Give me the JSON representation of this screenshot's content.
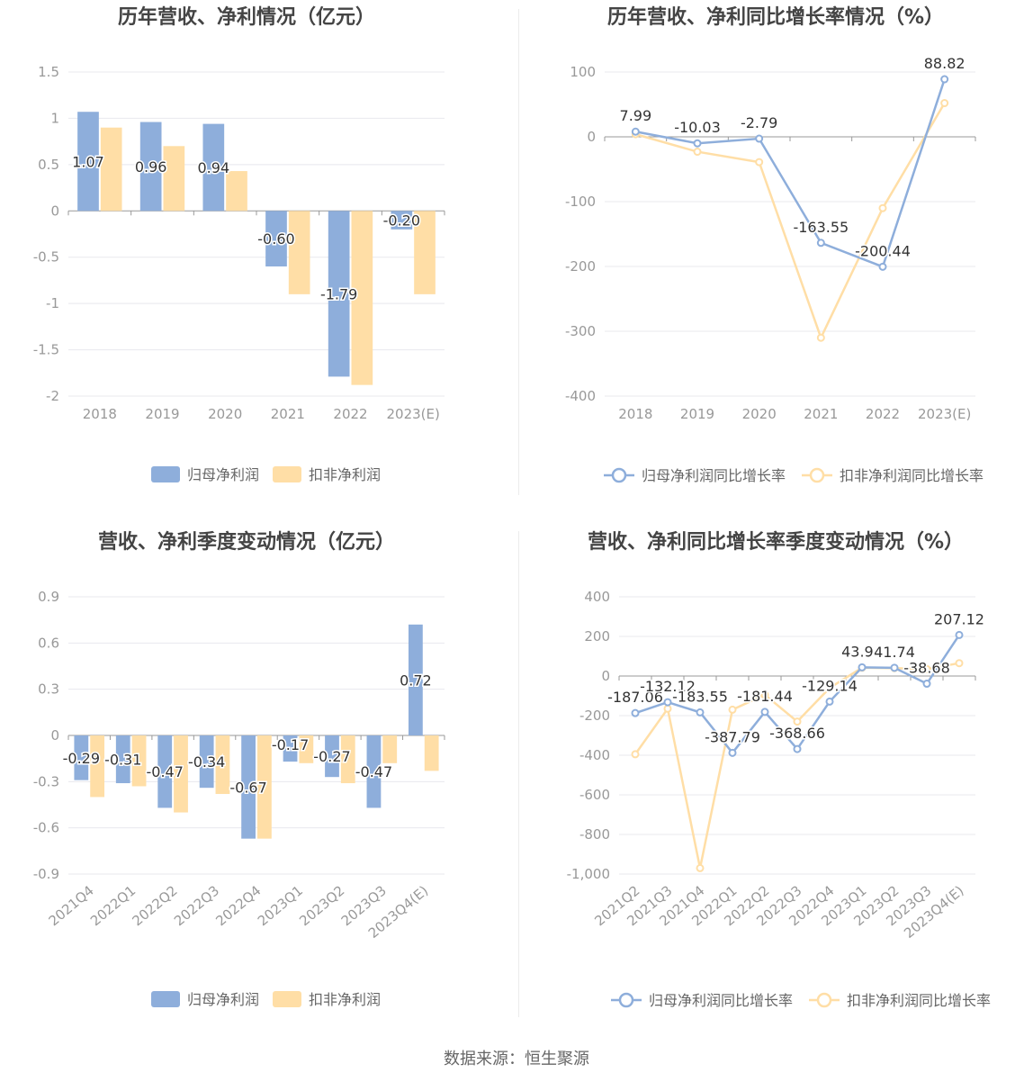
{
  "footer": {
    "source_label": "数据来源：",
    "source_name": "恒生聚源"
  },
  "colors": {
    "net_profit": "#8eaedb",
    "deducted_profit": "#ffdea6",
    "axis": "#999999",
    "grid": "#e8e8ee",
    "title": "#444444"
  },
  "chart_data": [
    {
      "id": "annual_profit",
      "type": "bar",
      "title": "历年营收、净利情况（亿元）",
      "categories": [
        "2018",
        "2019",
        "2020",
        "2021",
        "2022",
        "2023(E)"
      ],
      "yticks": [
        "1.5",
        "1",
        "0.5",
        "0",
        "-0.5",
        "-1",
        "-1.5",
        "-2"
      ],
      "ylim": [
        -2,
        1.5
      ],
      "series": [
        {
          "name": "归母净利润",
          "values": [
            1.07,
            0.96,
            0.94,
            -0.6,
            -1.79,
            -0.2
          ],
          "labels": [
            "1.07",
            "0.96",
            "0.94",
            "-0.60",
            "-1.79",
            "-0.20"
          ]
        },
        {
          "name": "扣非净利润",
          "values": [
            0.9,
            0.7,
            0.43,
            -0.9,
            -1.88,
            -0.9
          ]
        }
      ]
    },
    {
      "id": "annual_growth",
      "type": "line",
      "title": "历年营收、净利同比增长率情况（%）",
      "categories": [
        "2018",
        "2019",
        "2020",
        "2021",
        "2022",
        "2023(E)"
      ],
      "yticks": [
        "100",
        "0",
        "-100",
        "-200",
        "-300",
        "-400"
      ],
      "ylim": [
        -400,
        100
      ],
      "series": [
        {
          "name": "归母净利润同比增长率",
          "values": [
            7.99,
            -10.03,
            -2.79,
            -163.55,
            -200.44,
            88.82
          ],
          "labels": [
            "7.99",
            "-10.03",
            "-2.79",
            "-163.55",
            "-200.44",
            "88.82"
          ]
        },
        {
          "name": "扣非净利润同比增长率",
          "values": [
            4,
            -23,
            -39,
            -310,
            -110,
            52
          ]
        }
      ]
    },
    {
      "id": "quarterly_profit",
      "type": "bar",
      "title": "营收、净利季度变动情况（亿元）",
      "categories": [
        "2021Q4",
        "2022Q1",
        "2022Q2",
        "2022Q3",
        "2022Q4",
        "2023Q1",
        "2023Q2",
        "2023Q3",
        "2023Q4(E)"
      ],
      "yticks": [
        "0.9",
        "0.6",
        "0.3",
        "0",
        "-0.3",
        "-0.6",
        "-0.9"
      ],
      "ylim": [
        -0.9,
        0.9
      ],
      "series": [
        {
          "name": "归母净利润",
          "values": [
            -0.29,
            -0.31,
            -0.47,
            -0.34,
            -0.67,
            -0.17,
            -0.27,
            -0.47,
            0.72
          ],
          "labels": [
            "-0.29",
            "-0.31",
            "-0.47",
            "-0.34",
            "-0.67",
            "-0.17",
            "-0.27",
            "-0.47",
            "0.72"
          ]
        },
        {
          "name": "扣非净利润",
          "values": [
            -0.4,
            -0.33,
            -0.5,
            -0.38,
            -0.67,
            -0.18,
            -0.31,
            -0.18,
            -0.23
          ]
        }
      ]
    },
    {
      "id": "quarterly_growth",
      "type": "line",
      "title": "营收、净利同比增长率季度变动情况（%）",
      "categories": [
        "2021Q2",
        "2021Q3",
        "2021Q4",
        "2022Q1",
        "2022Q2",
        "2022Q3",
        "2022Q4",
        "2023Q1",
        "2023Q2",
        "2023Q3",
        "2023Q4(E)"
      ],
      "yticks": [
        "400",
        "200",
        "0",
        "-200",
        "-400",
        "-600",
        "-800",
        "-1,000"
      ],
      "ylim": [
        -1000,
        400
      ],
      "series": [
        {
          "name": "归母净利润同比增长率",
          "values": [
            -187.06,
            -132.12,
            -183.55,
            -387.79,
            -181.44,
            -368.66,
            -129.14,
            43.94,
            41.74,
            -38.68,
            207.12
          ],
          "labels": [
            "-187.06",
            "-132.12",
            "-183.55",
            "-387.79",
            "-181.44",
            "-368.66",
            "-129.14",
            "43.94",
            "41.74",
            "-38.68",
            "207.12"
          ]
        },
        {
          "name": "扣非净利润同比增长率",
          "values": [
            -395,
            -165,
            -970,
            -170,
            -95,
            -230,
            -60,
            42,
            40,
            35,
            65
          ]
        }
      ]
    }
  ]
}
